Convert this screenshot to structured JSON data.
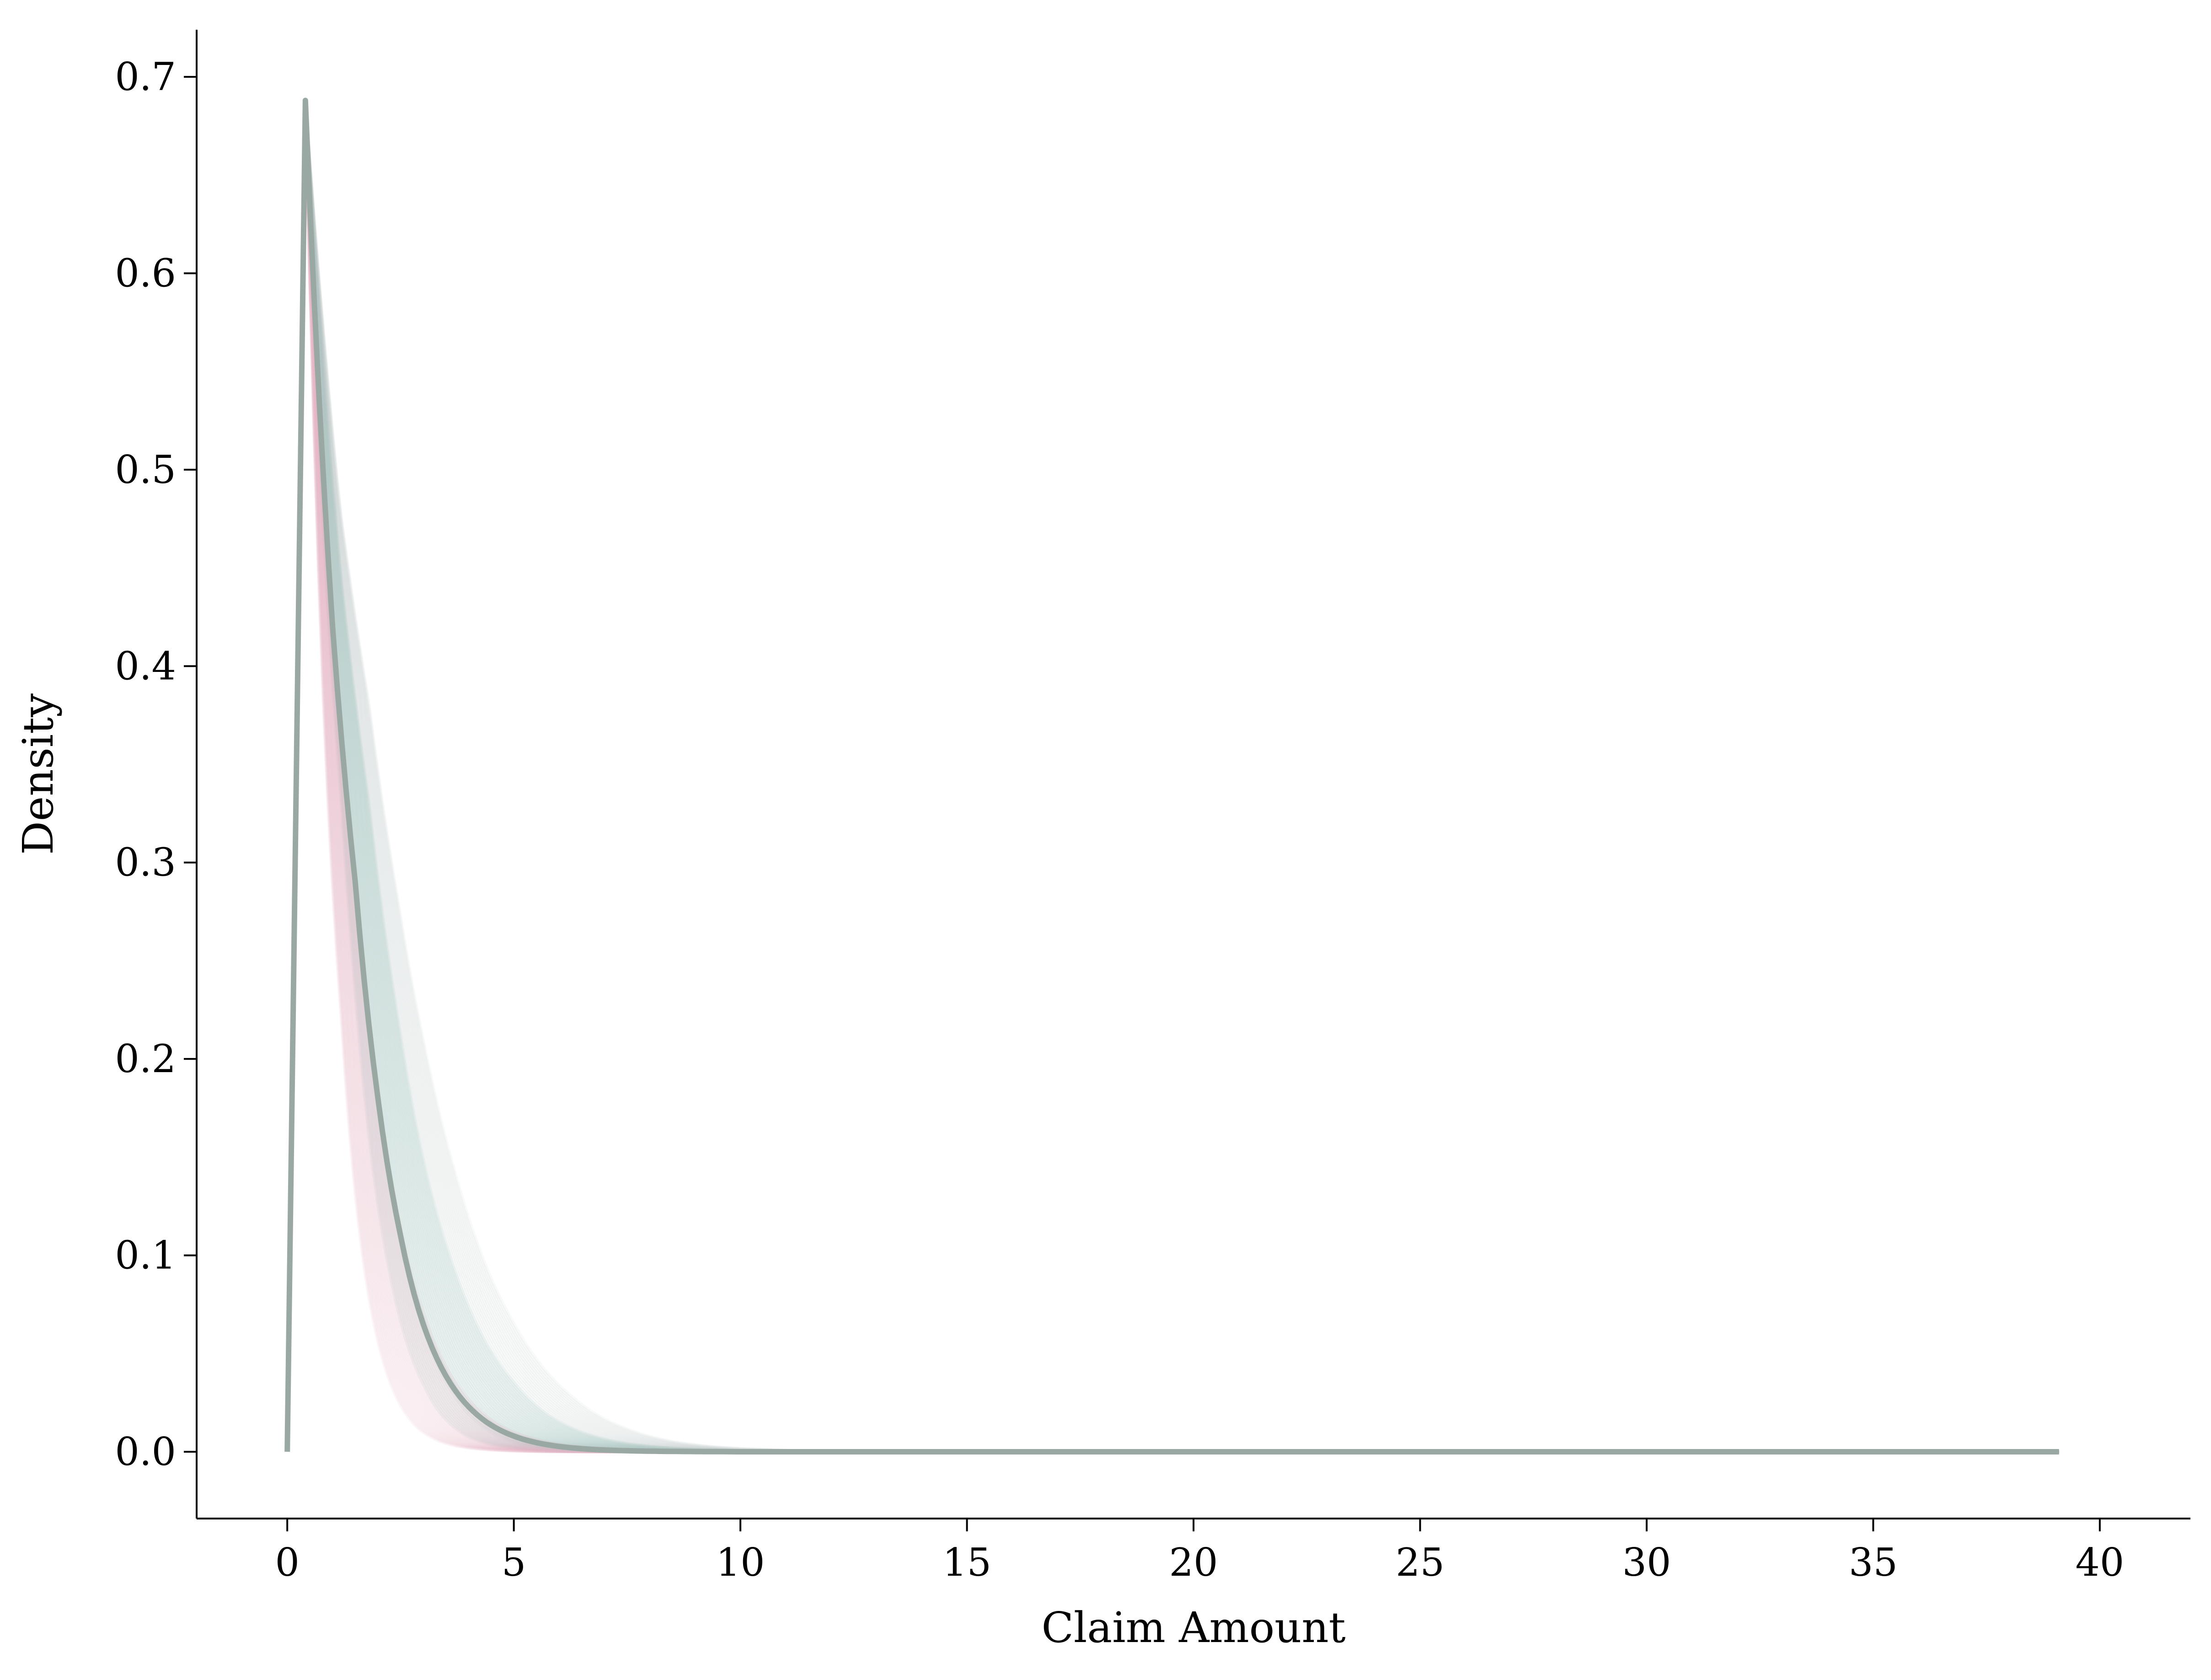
{
  "chart_data": {
    "type": "line",
    "title": "",
    "xlabel": "Claim Amount",
    "ylabel": "Density",
    "xlim": [
      -2,
      42
    ],
    "ylim": [
      -0.034,
      0.724
    ],
    "xticks": [
      0,
      5,
      10,
      15,
      20,
      25,
      30,
      35,
      40
    ],
    "yticks": [
      0.0,
      0.1,
      0.2,
      0.3,
      0.4,
      0.5,
      0.6,
      0.7
    ],
    "xtick_labels": [
      "0",
      "5",
      "10",
      "15",
      "20",
      "25",
      "30",
      "35",
      "40"
    ],
    "ytick_labels": [
      "0.0",
      "0.1",
      "0.2",
      "0.3",
      "0.4",
      "0.5",
      "0.6",
      "0.7"
    ],
    "grid": false,
    "legend": "none",
    "spines": [
      "left",
      "bottom"
    ],
    "series": [
      {
        "role": "posterior-draws",
        "color": "#9ccfc5",
        "opacity": 0.12,
        "count": 40,
        "x": [
          0,
          0.4,
          1,
          1.5,
          2,
          2.5,
          3,
          4,
          5,
          6,
          7,
          8,
          9,
          10,
          40
        ],
        "values": [
          0.0,
          0.688,
          0.45,
          0.33,
          0.22,
          0.14,
          0.09,
          0.035,
          0.012,
          0.004,
          0.0015,
          0.0005,
          0.0002,
          0.0,
          0.0
        ]
      },
      {
        "role": "posterior-draws",
        "color": "#e8b4c4",
        "opacity": 0.12,
        "count": 40,
        "x": [
          0,
          0.4,
          1,
          1.5,
          2,
          2.5,
          3,
          4,
          5,
          6,
          7,
          8,
          9,
          10,
          40
        ],
        "values": [
          0.0,
          0.688,
          0.36,
          0.22,
          0.12,
          0.065,
          0.035,
          0.01,
          0.003,
          0.001,
          0.0003,
          0.0001,
          0.0,
          0.0,
          0.0
        ]
      },
      {
        "role": "posterior-draws",
        "color": "#b9c8c4",
        "opacity": 0.1,
        "count": 40,
        "x": [
          0,
          0.4,
          1,
          1.5,
          2,
          2.5,
          3,
          4,
          5,
          6,
          7,
          8,
          9,
          10,
          40
        ],
        "values": [
          0.0,
          0.688,
          0.48,
          0.38,
          0.28,
          0.2,
          0.14,
          0.065,
          0.028,
          0.011,
          0.004,
          0.0015,
          0.0005,
          0.0002,
          0.0
        ]
      },
      {
        "role": "mean",
        "color": "#9aa8a4",
        "opacity": 1.0,
        "count": 1,
        "x": [
          0,
          0.4,
          1,
          1.5,
          2,
          2.5,
          3,
          4,
          5,
          6,
          7,
          8,
          9,
          10,
          40
        ],
        "values": [
          0.0,
          0.688,
          0.42,
          0.29,
          0.18,
          0.11,
          0.065,
          0.023,
          0.008,
          0.0027,
          0.0009,
          0.0003,
          0.0001,
          0.0,
          0.0
        ]
      }
    ]
  }
}
